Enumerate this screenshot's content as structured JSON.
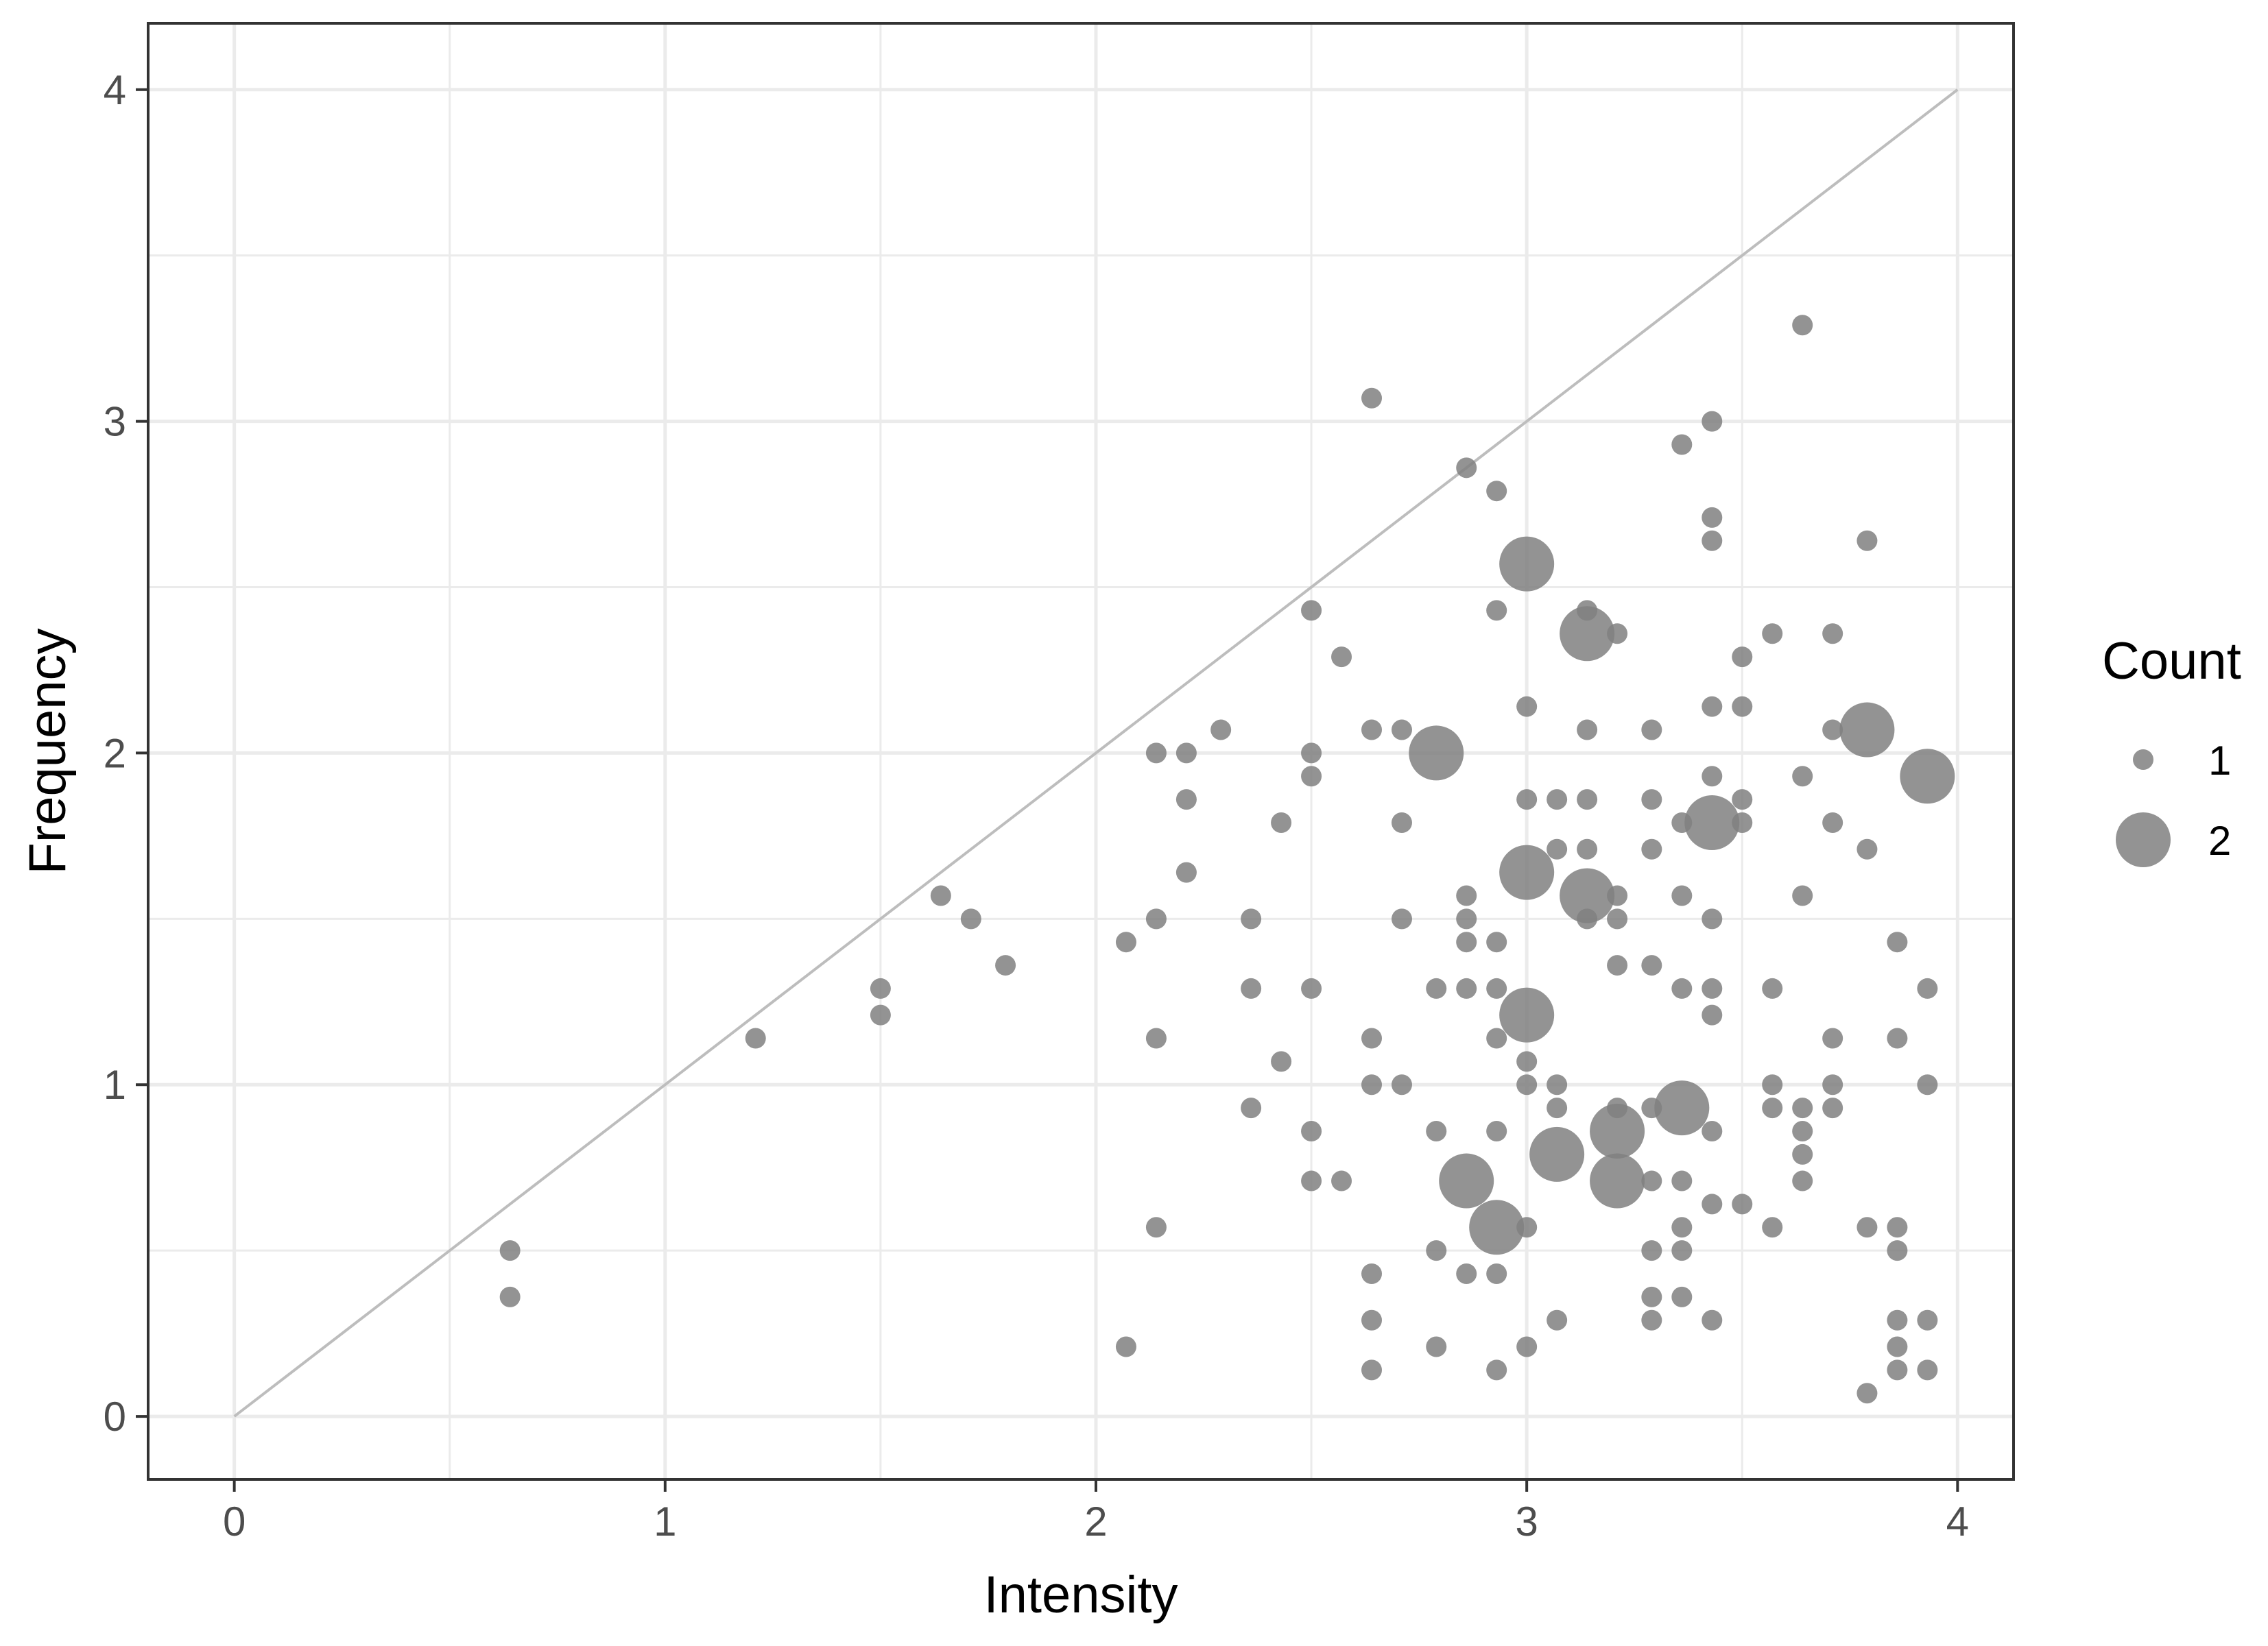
{
  "chart_data": {
    "type": "scatter",
    "title": "",
    "xlabel": "Intensity",
    "ylabel": "Frequency",
    "xlim": [
      -0.2,
      4.13
    ],
    "ylim": [
      -0.19,
      4.2
    ],
    "x_ticks": [
      "0",
      "1",
      "2",
      "3",
      "4"
    ],
    "y_ticks": [
      "0",
      "1",
      "2",
      "3",
      "4"
    ],
    "grid": true,
    "reference_line": {
      "from": [
        0,
        0
      ],
      "to": [
        4,
        4
      ]
    },
    "legend": {
      "title": "Count",
      "placement": "right",
      "entries": [
        {
          "label": "1",
          "count": 1
        },
        {
          "label": "2",
          "count": 2
        }
      ]
    },
    "colors": {
      "point": "#808080",
      "reference_line": "#bdbdbd",
      "grid": "#ebebeb",
      "panel_border": "#333333"
    },
    "points": [
      {
        "x": 0.64,
        "y": 0.5,
        "count": 1
      },
      {
        "x": 0.64,
        "y": 0.36,
        "count": 1
      },
      {
        "x": 1.21,
        "y": 1.14,
        "count": 1
      },
      {
        "x": 1.5,
        "y": 1.29,
        "count": 1
      },
      {
        "x": 1.5,
        "y": 1.21,
        "count": 1
      },
      {
        "x": 1.64,
        "y": 1.57,
        "count": 1
      },
      {
        "x": 1.71,
        "y": 1.5,
        "count": 1
      },
      {
        "x": 1.79,
        "y": 1.36,
        "count": 1
      },
      {
        "x": 2.07,
        "y": 1.43,
        "count": 1
      },
      {
        "x": 2.07,
        "y": 0.21,
        "count": 1
      },
      {
        "x": 2.14,
        "y": 2.0,
        "count": 1
      },
      {
        "x": 2.14,
        "y": 1.5,
        "count": 1
      },
      {
        "x": 2.14,
        "y": 1.14,
        "count": 1
      },
      {
        "x": 2.14,
        "y": 0.57,
        "count": 1
      },
      {
        "x": 2.21,
        "y": 2.0,
        "count": 1
      },
      {
        "x": 2.21,
        "y": 1.86,
        "count": 1
      },
      {
        "x": 2.21,
        "y": 1.64,
        "count": 1
      },
      {
        "x": 2.29,
        "y": 2.07,
        "count": 1
      },
      {
        "x": 2.36,
        "y": 1.5,
        "count": 1
      },
      {
        "x": 2.36,
        "y": 1.29,
        "count": 1
      },
      {
        "x": 2.36,
        "y": 0.93,
        "count": 1
      },
      {
        "x": 2.43,
        "y": 1.79,
        "count": 1
      },
      {
        "x": 2.43,
        "y": 1.07,
        "count": 1
      },
      {
        "x": 2.5,
        "y": 2.43,
        "count": 1
      },
      {
        "x": 2.5,
        "y": 2.0,
        "count": 1
      },
      {
        "x": 2.5,
        "y": 1.93,
        "count": 1
      },
      {
        "x": 2.5,
        "y": 1.29,
        "count": 1
      },
      {
        "x": 2.5,
        "y": 0.86,
        "count": 1
      },
      {
        "x": 2.5,
        "y": 0.71,
        "count": 1
      },
      {
        "x": 2.57,
        "y": 2.29,
        "count": 1
      },
      {
        "x": 2.57,
        "y": 0.71,
        "count": 1
      },
      {
        "x": 2.64,
        "y": 3.07,
        "count": 1
      },
      {
        "x": 2.64,
        "y": 2.07,
        "count": 1
      },
      {
        "x": 2.64,
        "y": 1.14,
        "count": 1
      },
      {
        "x": 2.64,
        "y": 1.0,
        "count": 1
      },
      {
        "x": 2.64,
        "y": 0.43,
        "count": 1
      },
      {
        "x": 2.64,
        "y": 0.29,
        "count": 1
      },
      {
        "x": 2.64,
        "y": 0.14,
        "count": 1
      },
      {
        "x": 2.71,
        "y": 2.07,
        "count": 1
      },
      {
        "x": 2.71,
        "y": 1.79,
        "count": 1
      },
      {
        "x": 2.71,
        "y": 1.5,
        "count": 1
      },
      {
        "x": 2.71,
        "y": 1.0,
        "count": 1
      },
      {
        "x": 2.79,
        "y": 2.0,
        "count": 2
      },
      {
        "x": 2.79,
        "y": 1.29,
        "count": 1
      },
      {
        "x": 2.79,
        "y": 0.86,
        "count": 1
      },
      {
        "x": 2.79,
        "y": 0.5,
        "count": 1
      },
      {
        "x": 2.79,
        "y": 0.21,
        "count": 1
      },
      {
        "x": 2.86,
        "y": 2.86,
        "count": 1
      },
      {
        "x": 2.86,
        "y": 1.57,
        "count": 1
      },
      {
        "x": 2.86,
        "y": 1.5,
        "count": 1
      },
      {
        "x": 2.86,
        "y": 1.43,
        "count": 1
      },
      {
        "x": 2.86,
        "y": 1.29,
        "count": 1
      },
      {
        "x": 2.86,
        "y": 0.71,
        "count": 2
      },
      {
        "x": 2.86,
        "y": 0.43,
        "count": 1
      },
      {
        "x": 2.93,
        "y": 2.79,
        "count": 1
      },
      {
        "x": 2.93,
        "y": 2.43,
        "count": 1
      },
      {
        "x": 2.93,
        "y": 1.43,
        "count": 1
      },
      {
        "x": 2.93,
        "y": 1.29,
        "count": 1
      },
      {
        "x": 2.93,
        "y": 1.14,
        "count": 1
      },
      {
        "x": 2.93,
        "y": 0.86,
        "count": 1
      },
      {
        "x": 2.93,
        "y": 0.57,
        "count": 2
      },
      {
        "x": 2.93,
        "y": 0.43,
        "count": 1
      },
      {
        "x": 2.93,
        "y": 0.14,
        "count": 1
      },
      {
        "x": 3.0,
        "y": 2.57,
        "count": 2
      },
      {
        "x": 3.0,
        "y": 2.14,
        "count": 1
      },
      {
        "x": 3.0,
        "y": 1.86,
        "count": 1
      },
      {
        "x": 3.0,
        "y": 1.64,
        "count": 2
      },
      {
        "x": 3.0,
        "y": 1.21,
        "count": 2
      },
      {
        "x": 3.0,
        "y": 1.07,
        "count": 1
      },
      {
        "x": 3.0,
        "y": 1.0,
        "count": 1
      },
      {
        "x": 3.0,
        "y": 0.57,
        "count": 1
      },
      {
        "x": 3.0,
        "y": 0.21,
        "count": 1
      },
      {
        "x": 3.07,
        "y": 1.86,
        "count": 1
      },
      {
        "x": 3.07,
        "y": 1.71,
        "count": 1
      },
      {
        "x": 3.07,
        "y": 1.0,
        "count": 1
      },
      {
        "x": 3.07,
        "y": 0.93,
        "count": 1
      },
      {
        "x": 3.07,
        "y": 0.79,
        "count": 2
      },
      {
        "x": 3.07,
        "y": 0.29,
        "count": 1
      },
      {
        "x": 3.14,
        "y": 2.43,
        "count": 1
      },
      {
        "x": 3.14,
        "y": 2.36,
        "count": 2
      },
      {
        "x": 3.14,
        "y": 2.07,
        "count": 1
      },
      {
        "x": 3.14,
        "y": 1.86,
        "count": 1
      },
      {
        "x": 3.14,
        "y": 1.71,
        "count": 1
      },
      {
        "x": 3.14,
        "y": 1.57,
        "count": 2
      },
      {
        "x": 3.14,
        "y": 1.5,
        "count": 1
      },
      {
        "x": 3.21,
        "y": 2.36,
        "count": 1
      },
      {
        "x": 3.21,
        "y": 1.57,
        "count": 1
      },
      {
        "x": 3.21,
        "y": 1.5,
        "count": 1
      },
      {
        "x": 3.21,
        "y": 1.36,
        "count": 1
      },
      {
        "x": 3.21,
        "y": 0.93,
        "count": 1
      },
      {
        "x": 3.21,
        "y": 0.86,
        "count": 2
      },
      {
        "x": 3.21,
        "y": 0.71,
        "count": 2
      },
      {
        "x": 3.29,
        "y": 2.07,
        "count": 1
      },
      {
        "x": 3.29,
        "y": 1.86,
        "count": 1
      },
      {
        "x": 3.29,
        "y": 1.71,
        "count": 1
      },
      {
        "x": 3.29,
        "y": 1.36,
        "count": 1
      },
      {
        "x": 3.29,
        "y": 0.93,
        "count": 1
      },
      {
        "x": 3.29,
        "y": 0.71,
        "count": 1
      },
      {
        "x": 3.29,
        "y": 0.5,
        "count": 1
      },
      {
        "x": 3.29,
        "y": 0.36,
        "count": 1
      },
      {
        "x": 3.29,
        "y": 0.29,
        "count": 1
      },
      {
        "x": 3.36,
        "y": 2.93,
        "count": 1
      },
      {
        "x": 3.36,
        "y": 1.79,
        "count": 1
      },
      {
        "x": 3.36,
        "y": 1.57,
        "count": 1
      },
      {
        "x": 3.36,
        "y": 1.29,
        "count": 1
      },
      {
        "x": 3.36,
        "y": 0.93,
        "count": 2
      },
      {
        "x": 3.36,
        "y": 0.71,
        "count": 1
      },
      {
        "x": 3.36,
        "y": 0.57,
        "count": 1
      },
      {
        "x": 3.36,
        "y": 0.5,
        "count": 1
      },
      {
        "x": 3.36,
        "y": 0.36,
        "count": 1
      },
      {
        "x": 3.43,
        "y": 3.0,
        "count": 1
      },
      {
        "x": 3.43,
        "y": 2.71,
        "count": 1
      },
      {
        "x": 3.43,
        "y": 2.64,
        "count": 1
      },
      {
        "x": 3.43,
        "y": 2.14,
        "count": 1
      },
      {
        "x": 3.43,
        "y": 1.93,
        "count": 1
      },
      {
        "x": 3.43,
        "y": 1.79,
        "count": 2
      },
      {
        "x": 3.43,
        "y": 1.5,
        "count": 1
      },
      {
        "x": 3.43,
        "y": 1.29,
        "count": 1
      },
      {
        "x": 3.43,
        "y": 1.21,
        "count": 1
      },
      {
        "x": 3.43,
        "y": 0.86,
        "count": 1
      },
      {
        "x": 3.43,
        "y": 0.64,
        "count": 1
      },
      {
        "x": 3.43,
        "y": 0.29,
        "count": 1
      },
      {
        "x": 3.5,
        "y": 2.29,
        "count": 1
      },
      {
        "x": 3.5,
        "y": 2.14,
        "count": 1
      },
      {
        "x": 3.5,
        "y": 1.86,
        "count": 1
      },
      {
        "x": 3.5,
        "y": 1.79,
        "count": 1
      },
      {
        "x": 3.5,
        "y": 0.64,
        "count": 1
      },
      {
        "x": 3.57,
        "y": 2.36,
        "count": 1
      },
      {
        "x": 3.57,
        "y": 1.29,
        "count": 1
      },
      {
        "x": 3.57,
        "y": 1.0,
        "count": 1
      },
      {
        "x": 3.57,
        "y": 0.93,
        "count": 1
      },
      {
        "x": 3.57,
        "y": 0.57,
        "count": 1
      },
      {
        "x": 3.64,
        "y": 3.29,
        "count": 1
      },
      {
        "x": 3.64,
        "y": 1.93,
        "count": 1
      },
      {
        "x": 3.64,
        "y": 1.57,
        "count": 1
      },
      {
        "x": 3.64,
        "y": 0.93,
        "count": 1
      },
      {
        "x": 3.64,
        "y": 0.86,
        "count": 1
      },
      {
        "x": 3.64,
        "y": 0.79,
        "count": 1
      },
      {
        "x": 3.64,
        "y": 0.71,
        "count": 1
      },
      {
        "x": 3.71,
        "y": 2.36,
        "count": 1
      },
      {
        "x": 3.71,
        "y": 2.07,
        "count": 1
      },
      {
        "x": 3.71,
        "y": 1.79,
        "count": 1
      },
      {
        "x": 3.71,
        "y": 1.14,
        "count": 1
      },
      {
        "x": 3.71,
        "y": 1.0,
        "count": 1
      },
      {
        "x": 3.71,
        "y": 0.93,
        "count": 1
      },
      {
        "x": 3.79,
        "y": 2.64,
        "count": 1
      },
      {
        "x": 3.79,
        "y": 2.07,
        "count": 2
      },
      {
        "x": 3.79,
        "y": 1.71,
        "count": 1
      },
      {
        "x": 3.79,
        "y": 0.57,
        "count": 1
      },
      {
        "x": 3.79,
        "y": 0.07,
        "count": 1
      },
      {
        "x": 3.86,
        "y": 1.43,
        "count": 1
      },
      {
        "x": 3.86,
        "y": 1.14,
        "count": 1
      },
      {
        "x": 3.86,
        "y": 0.57,
        "count": 1
      },
      {
        "x": 3.86,
        "y": 0.5,
        "count": 1
      },
      {
        "x": 3.86,
        "y": 0.29,
        "count": 1
      },
      {
        "x": 3.86,
        "y": 0.21,
        "count": 1
      },
      {
        "x": 3.86,
        "y": 0.14,
        "count": 1
      },
      {
        "x": 3.93,
        "y": 1.93,
        "count": 2
      },
      {
        "x": 3.93,
        "y": 1.29,
        "count": 1
      },
      {
        "x": 3.93,
        "y": 1.0,
        "count": 1
      },
      {
        "x": 3.93,
        "y": 0.29,
        "count": 1
      },
      {
        "x": 3.93,
        "y": 0.14,
        "count": 1
      }
    ]
  }
}
